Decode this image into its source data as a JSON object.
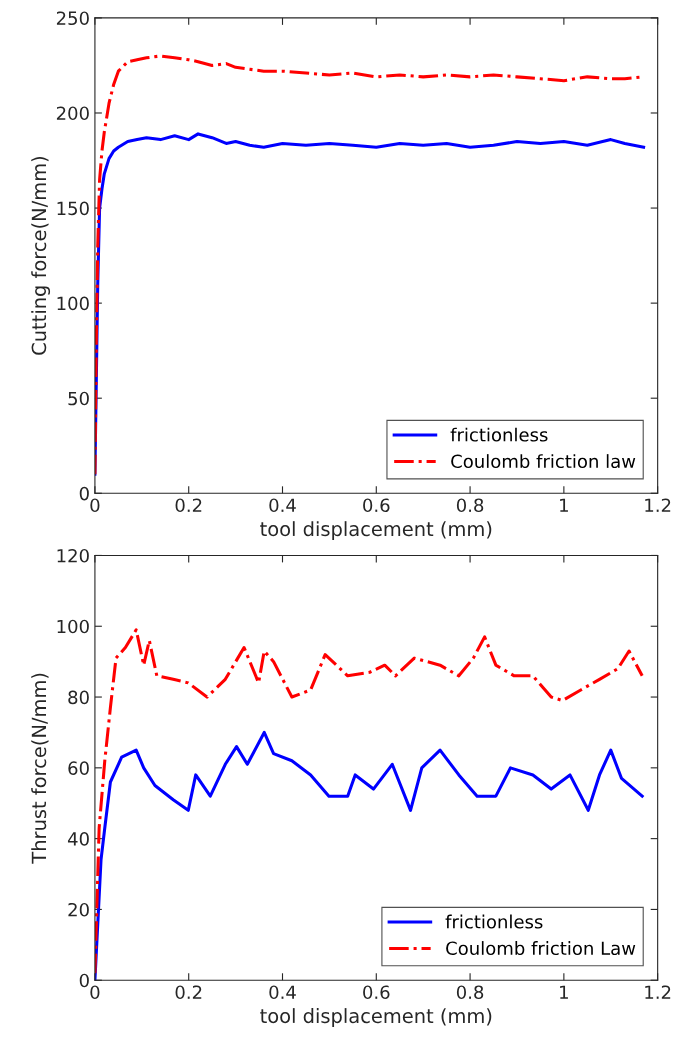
{
  "chart_data": [
    {
      "type": "line",
      "xlabel": "tool displacement (mm)",
      "ylabel": "Cutting force(N/mm)",
      "xlim": [
        0,
        1.2
      ],
      "xticks": [
        0,
        0.2,
        0.4,
        0.6,
        0.8,
        1,
        1.2
      ],
      "ylim": [
        0,
        250
      ],
      "yticks": [
        0,
        50,
        100,
        150,
        200,
        250
      ],
      "legend": "bottom right",
      "grid": false,
      "series": [
        {
          "name": "frictionless",
          "color": "#0000ff",
          "line_style": "solid",
          "x": [
            0,
            0.003,
            0.006,
            0.01,
            0.015,
            0.02,
            0.03,
            0.04,
            0.05,
            0.07,
            0.09,
            0.11,
            0.14,
            0.17,
            0.2,
            0.22,
            0.25,
            0.28,
            0.3,
            0.33,
            0.36,
            0.4,
            0.45,
            0.5,
            0.55,
            0.6,
            0.65,
            0.7,
            0.75,
            0.8,
            0.85,
            0.9,
            0.95,
            1.0,
            1.05,
            1.1,
            1.13,
            1.17
          ],
          "values": [
            10,
            60,
            110,
            150,
            160,
            168,
            176,
            180,
            182,
            185,
            186,
            187,
            186,
            188,
            186,
            189,
            187,
            184,
            185,
            183,
            182,
            184,
            183,
            184,
            183,
            182,
            184,
            183,
            184,
            182,
            183,
            185,
            184,
            185,
            183,
            186,
            184,
            182
          ]
        },
        {
          "name": "Coulomb friction law",
          "color": "#ff0000",
          "line_style": "dashdot",
          "x": [
            0,
            0.003,
            0.006,
            0.01,
            0.015,
            0.02,
            0.03,
            0.04,
            0.05,
            0.07,
            0.09,
            0.11,
            0.14,
            0.17,
            0.2,
            0.22,
            0.25,
            0.28,
            0.3,
            0.33,
            0.36,
            0.4,
            0.45,
            0.5,
            0.55,
            0.6,
            0.65,
            0.7,
            0.75,
            0.8,
            0.85,
            0.9,
            0.95,
            1.0,
            1.05,
            1.1,
            1.13,
            1.17
          ],
          "values": [
            10,
            80,
            130,
            165,
            180,
            190,
            205,
            215,
            222,
            227,
            228,
            229,
            230,
            229,
            228,
            227,
            225,
            226,
            224,
            223,
            222,
            222,
            221,
            220,
            221,
            219,
            220,
            219,
            220,
            219,
            220,
            219,
            218,
            217,
            219,
            218,
            218,
            219
          ]
        }
      ]
    },
    {
      "type": "line",
      "xlabel": "tool displacement (mm)",
      "ylabel": "Thrust force(N/mm)",
      "xlim": [
        0,
        1.2
      ],
      "xticks": [
        0,
        0.2,
        0.4,
        0.6,
        0.8,
        1,
        1.2
      ],
      "ylim": [
        0,
        120
      ],
      "yticks": [
        0,
        20,
        40,
        60,
        80,
        100,
        120
      ],
      "legend": "bottom right",
      "grid": false,
      "series": [
        {
          "name": "frictionless",
          "color": "#0000ff",
          "line_style": "solid",
          "x": [
            0,
            0.013,
            0.021,
            0.033,
            0.057,
            0.088,
            0.104,
            0.128,
            0.167,
            0.199,
            0.215,
            0.246,
            0.278,
            0.302,
            0.325,
            0.361,
            0.381,
            0.42,
            0.46,
            0.499,
            0.539,
            0.555,
            0.594,
            0.634,
            0.673,
            0.697,
            0.736,
            0.776,
            0.815,
            0.855,
            0.886,
            0.934,
            0.973,
            1.013,
            1.052,
            1.076,
            1.1,
            1.123,
            1.167
          ],
          "values": [
            0,
            34,
            43,
            56,
            63,
            65,
            60,
            55,
            51,
            48,
            58,
            52,
            61,
            66,
            61,
            70,
            64,
            62,
            58,
            52,
            52,
            58,
            54,
            61,
            48,
            60,
            65,
            58,
            52,
            52,
            60,
            58,
            54,
            58,
            48,
            58,
            65,
            57,
            52
          ]
        },
        {
          "name": "Coulomb friction Law",
          "color": "#ff0000",
          "line_style": "dashdot",
          "x": [
            0,
            0.009,
            0.021,
            0.033,
            0.045,
            0.065,
            0.088,
            0.104,
            0.116,
            0.132,
            0.167,
            0.199,
            0.239,
            0.278,
            0.318,
            0.349,
            0.361,
            0.381,
            0.42,
            0.46,
            0.491,
            0.539,
            0.586,
            0.618,
            0.641,
            0.681,
            0.736,
            0.776,
            0.807,
            0.831,
            0.855,
            0.894,
            0.934,
            0.973,
            0.997,
            1.036,
            1.076,
            1.115,
            1.139,
            1.167
          ],
          "values": [
            2,
            43,
            62,
            77,
            91,
            94,
            99,
            89,
            96,
            86,
            85,
            84,
            80,
            85,
            94,
            84,
            93,
            90,
            80,
            82,
            92,
            86,
            87,
            89,
            86,
            91,
            89,
            86,
            91,
            97,
            89,
            86,
            86,
            80,
            79,
            82,
            85,
            88,
            93,
            86
          ]
        }
      ]
    }
  ]
}
